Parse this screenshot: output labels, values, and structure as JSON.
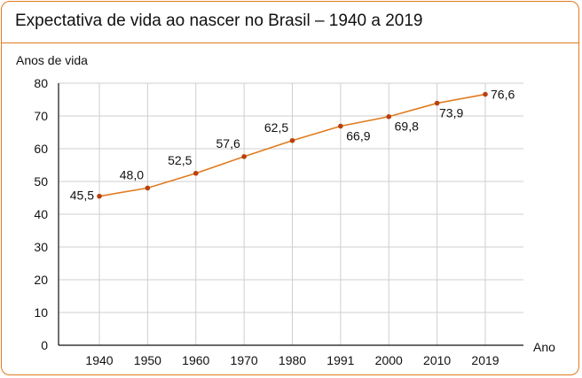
{
  "chart_data": {
    "type": "line",
    "title": "Expectativa de vida ao nascer no Brasil – 1940 a 2019",
    "ylabel": "Anos de vida",
    "xlabel": "Ano",
    "categories": [
      "1940",
      "1950",
      "1960",
      "1970",
      "1980",
      "1991",
      "2000",
      "2010",
      "2019"
    ],
    "values": [
      45.5,
      48.0,
      52.5,
      57.6,
      62.5,
      66.9,
      69.8,
      73.9,
      76.6
    ],
    "data_labels": [
      "45,5",
      "48,0",
      "52,5",
      "57,6",
      "62,5",
      "66,9",
      "69,8",
      "73,9",
      "76,6"
    ],
    "yticks": [
      0,
      10,
      20,
      30,
      40,
      50,
      60,
      70,
      80
    ],
    "ylim": [
      0,
      80
    ],
    "grid": true,
    "colors": {
      "line": "#e07b1f",
      "marker": "#b8400c",
      "frame": "#e07b1f",
      "grid": "#cfcfcf"
    }
  }
}
